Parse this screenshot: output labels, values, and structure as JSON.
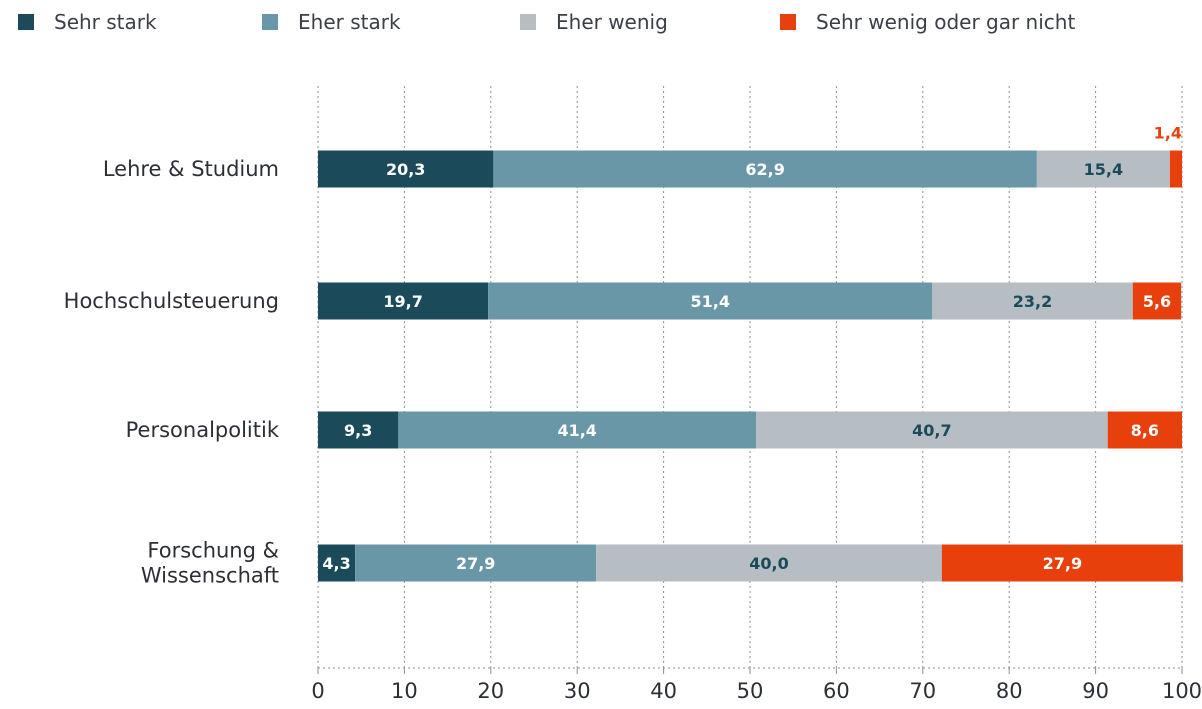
{
  "chart_data": {
    "type": "bar",
    "orientation": "horizontal",
    "stacked": true,
    "categories": [
      "Lehre & Studium",
      "Hochschulsteuerung",
      "Personalpolitik",
      "Forschung & Wissenschaft"
    ],
    "series": [
      {
        "name": "Sehr stark",
        "color": "#1b4b5a",
        "label_color": "#ffffff",
        "values": [
          20.3,
          19.7,
          9.3,
          4.3
        ],
        "labels": [
          "20,3",
          "19,7",
          "9,3",
          "4,3"
        ]
      },
      {
        "name": "Eher stark",
        "color": "#6a97a8",
        "label_color": "#ffffff",
        "values": [
          62.9,
          51.4,
          41.4,
          27.9
        ],
        "labels": [
          "62,9",
          "51,4",
          "41,4",
          "27,9"
        ]
      },
      {
        "name": "Eher wenig",
        "color": "#b6bec4",
        "label_color": "#1b4b5a",
        "values": [
          15.4,
          23.2,
          40.7,
          40.0
        ],
        "labels": [
          "15,4",
          "23,2",
          "40,7",
          "40,0"
        ]
      },
      {
        "name": "Sehr wenig oder gar nicht",
        "color": "#e8400d",
        "label_color": "#ffffff",
        "values": [
          1.4,
          5.6,
          8.6,
          27.9
        ],
        "labels": [
          "1,4",
          "5,6",
          "8,6",
          "27,9"
        ]
      }
    ],
    "xlim": [
      0,
      100
    ],
    "xticks": [
      0,
      10,
      20,
      30,
      40,
      50,
      60,
      70,
      80,
      90,
      100
    ],
    "grid": true,
    "legend_position": "top"
  }
}
